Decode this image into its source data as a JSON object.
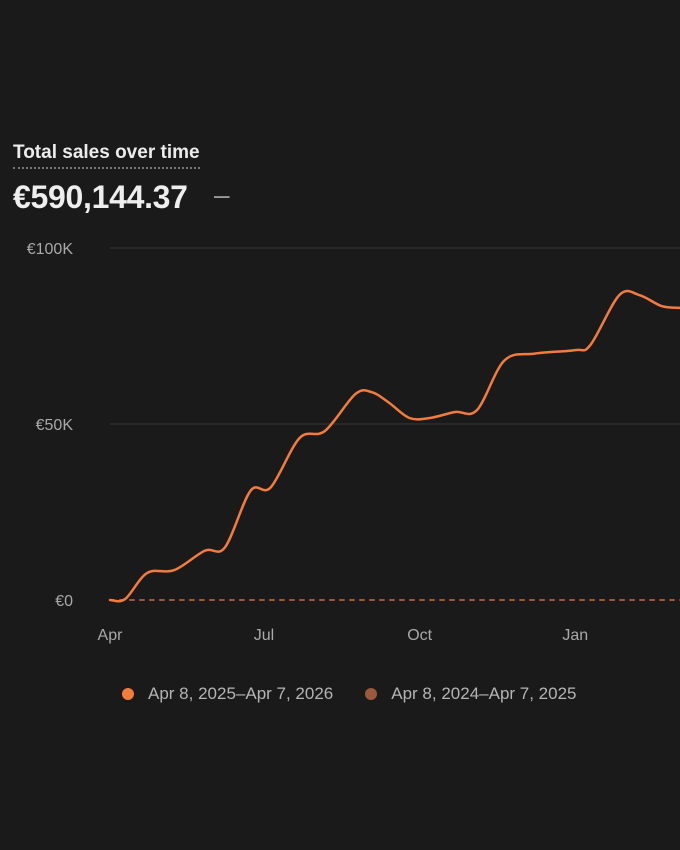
{
  "header": {
    "title": "Total sales over time",
    "total": "€590,144.37",
    "comparison": "–"
  },
  "colors": {
    "current": "#f47b3f",
    "previous": "#9c5a3c",
    "background": "#1b1a1a",
    "grid": "#383838"
  },
  "chart_data": {
    "type": "line",
    "title": "Total sales over time",
    "xlabel": "",
    "ylabel": "",
    "ylim": [
      0,
      100000
    ],
    "grid": true,
    "legend_position": "bottom",
    "y_ticks": [
      {
        "value": 0,
        "label": "€0"
      },
      {
        "value": 50000,
        "label": "€50K"
      },
      {
        "value": 100000,
        "label": "€100K"
      }
    ],
    "x_ticks": [
      {
        "day": 0,
        "label": "Apr"
      },
      {
        "day": 91,
        "label": "Jul"
      },
      {
        "day": 183,
        "label": "Oct"
      },
      {
        "day": 275,
        "label": "Jan"
      }
    ],
    "series": [
      {
        "name": "Apr 8, 2025–Apr 7, 2026",
        "style": "solid",
        "points": [
          {
            "x": "2025-04-08",
            "y": 0
          },
          {
            "x": "2025-04-17",
            "y": 300
          },
          {
            "x": "2025-04-30",
            "y": 7700
          },
          {
            "x": "2025-05-16",
            "y": 8500
          },
          {
            "x": "2025-06-03",
            "y": 14000
          },
          {
            "x": "2025-06-15",
            "y": 15000
          },
          {
            "x": "2025-06-30",
            "y": 31000
          },
          {
            "x": "2025-07-12",
            "y": 32000
          },
          {
            "x": "2025-07-29",
            "y": 46000
          },
          {
            "x": "2025-08-13",
            "y": 48000
          },
          {
            "x": "2025-08-31",
            "y": 58500
          },
          {
            "x": "2025-09-10",
            "y": 59000
          },
          {
            "x": "2025-09-20",
            "y": 56000
          },
          {
            "x": "2025-10-02",
            "y": 51700
          },
          {
            "x": "2025-10-14",
            "y": 51700
          },
          {
            "x": "2025-10-29",
            "y": 53400
          },
          {
            "x": "2025-11-11",
            "y": 54000
          },
          {
            "x": "2025-11-27",
            "y": 68000
          },
          {
            "x": "2025-12-15",
            "y": 70000
          },
          {
            "x": "2026-01-08",
            "y": 71000
          },
          {
            "x": "2026-01-17",
            "y": 72500
          },
          {
            "x": "2026-02-03",
            "y": 86600
          },
          {
            "x": "2026-02-15",
            "y": 86600
          },
          {
            "x": "2026-02-28",
            "y": 83500
          },
          {
            "x": "2026-03-11",
            "y": 83000
          }
        ]
      },
      {
        "name": "Apr 8, 2024–Apr 7, 2025",
        "style": "dashed",
        "points": [
          {
            "x": "2024-04-08",
            "y": 0
          },
          {
            "x": "2025-04-07",
            "y": 0
          }
        ]
      }
    ]
  }
}
